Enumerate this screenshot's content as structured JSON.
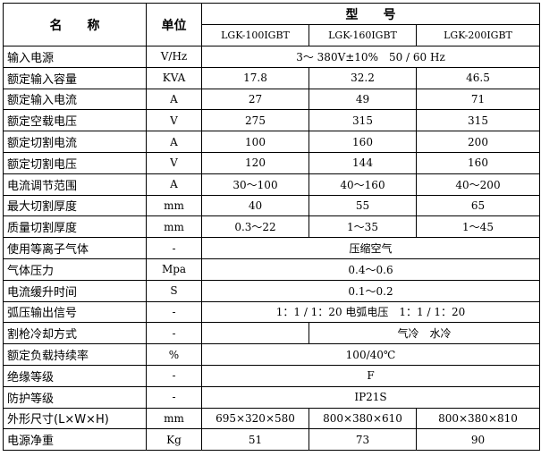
{
  "header": {
    "name": "名　　称",
    "unit": "单位",
    "model": "型　　号",
    "models": [
      "LGK-100IGBT",
      "LGK-160IGBT",
      "LGK-200IGBT"
    ]
  },
  "rows": [
    {
      "name": "输入电源",
      "unit": "V/Hz",
      "span": "3～ 380V±10%　50 / 60 Hz"
    },
    {
      "name": "额定输入容量",
      "unit": "KVA",
      "values": [
        "17.8",
        "32.2",
        "46.5"
      ]
    },
    {
      "name": "额定输入电流",
      "unit": "A",
      "values": [
        "27",
        "49",
        "71"
      ]
    },
    {
      "name": "额定空载电压",
      "unit": "V",
      "values": [
        "275",
        "315",
        "315"
      ]
    },
    {
      "name": "额定切割电流",
      "unit": "A",
      "values": [
        "100",
        "160",
        "200"
      ]
    },
    {
      "name": "额定切割电压",
      "unit": "V",
      "values": [
        "120",
        "144",
        "160"
      ]
    },
    {
      "name": "电流调节范围",
      "unit": "A",
      "values": [
        "30～100",
        "40～160",
        "40～200"
      ]
    },
    {
      "name": "最大切割厚度",
      "unit": "mm",
      "values": [
        "40",
        "55",
        "65"
      ]
    },
    {
      "name": "质量切割厚度",
      "unit": "mm",
      "values": [
        "0.3～22",
        "1～35",
        "1～45"
      ]
    },
    {
      "name": "使用等离子气体",
      "unit": "-",
      "span": "压缩空气"
    },
    {
      "name": "气体压力",
      "unit": "Mpa",
      "span": "0.4～0.6"
    },
    {
      "name": "电流缓升时间",
      "unit": "S",
      "span": "0.1～0.2"
    },
    {
      "name": "弧压输出信号",
      "unit": "-",
      "span": "1：1 / 1：20 电弧电压　1：1 / 1：20"
    },
    {
      "name": "割枪冷却方式",
      "unit": "-",
      "first": "",
      "span2": "气冷　水冷"
    },
    {
      "name": "额定负载持续率",
      "unit": "%",
      "span": "100/40℃"
    },
    {
      "name": "绝缘等级",
      "unit": "-",
      "span": "F"
    },
    {
      "name": "防护等级",
      "unit": "-",
      "span": "IP21S"
    },
    {
      "name": "外形尺寸(L×W×H)",
      "unit": "mm",
      "values": [
        "695×320×580",
        "800×380×610",
        "800×380×810"
      ]
    },
    {
      "name": "电源净重",
      "unit": "Kg",
      "values": [
        "51",
        "73",
        "90"
      ]
    }
  ]
}
